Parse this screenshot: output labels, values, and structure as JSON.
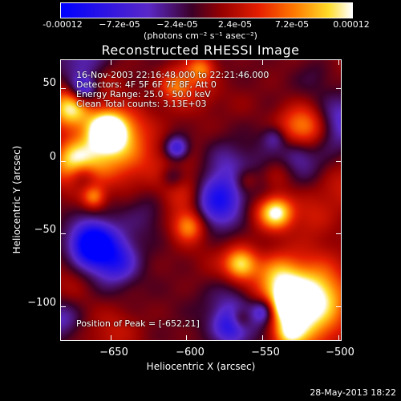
{
  "colorbar": {
    "ticks": [
      "-0.00012",
      "−7.2e-05",
      "−2.4e-05",
      "2.4e-05",
      "7.2e-05",
      "0.00012"
    ],
    "units": "(photons cm⁻² s⁻¹ asec⁻²)"
  },
  "chart_data": {
    "type": "heatmap",
    "title": "Reconstructed RHESSI Image",
    "xlabel": "Heliocentric X (arcsec)",
    "ylabel": "Heliocentric Y (arcsec)",
    "xlim": [
      -683,
      -498
    ],
    "ylim": [
      -124,
      70
    ],
    "x_ticks": [
      "−650",
      "−600",
      "−550",
      "−500"
    ],
    "y_ticks": [
      "50",
      "0",
      "−50",
      "−100"
    ],
    "clim": [
      -0.00012,
      0.00012
    ],
    "peak": [
      -652,
      21
    ],
    "colormap": "rhessi-hot-blue"
  },
  "annotations": {
    "time_range": "16-Nov-2003 22:16:48.000 to 22:21:46.000",
    "detectors": "Detectors: 4F 5F 6F 7F 8F, Att 0",
    "energy": "Energy Range: 25.0 - 50.0 keV",
    "clean": "Clean    Total counts: 3.13E+03",
    "peak_position": "Position of Peak = [-652,21]"
  },
  "footer": {
    "timestamp": "28-May-2013 18:22"
  }
}
